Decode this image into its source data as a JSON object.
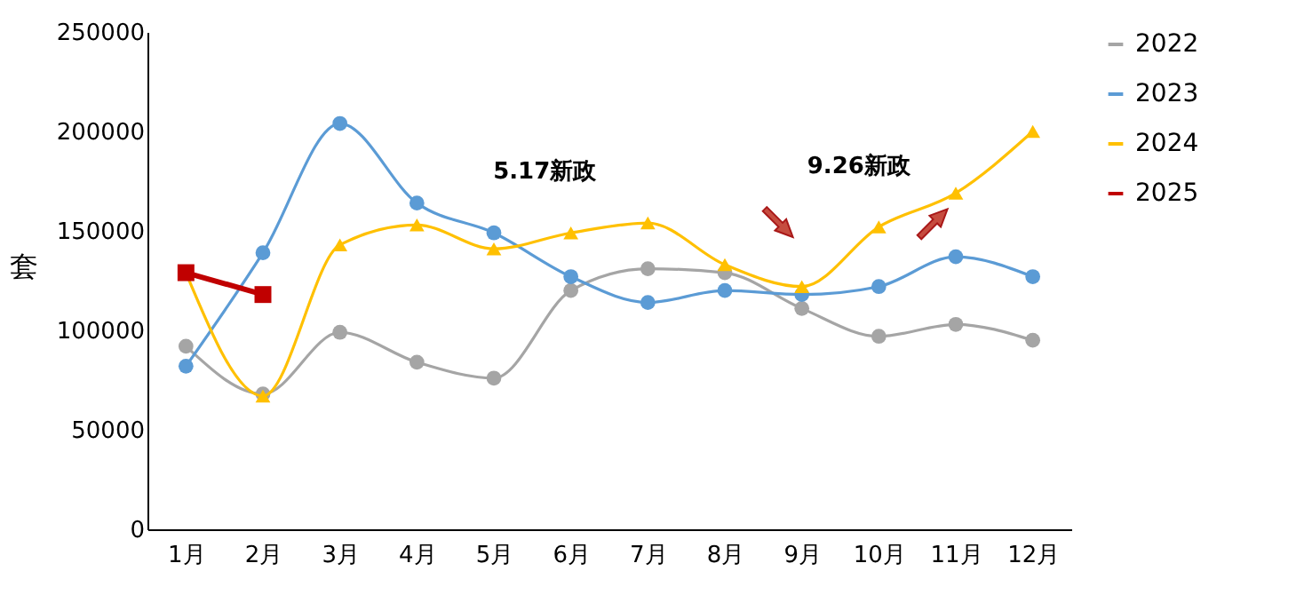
{
  "chart_data": {
    "type": "line",
    "categories": [
      "1月",
      "2月",
      "3月",
      "4月",
      "5月",
      "6月",
      "7月",
      "8月",
      "9月",
      "10月",
      "11月",
      "12月"
    ],
    "ylabel": "套",
    "ylim": [
      0,
      250000
    ],
    "yticks": [
      0,
      50000,
      100000,
      150000,
      200000,
      250000
    ],
    "grid": false,
    "legend": "right",
    "series": [
      {
        "name": "2022",
        "color": "#a5a5a5",
        "marker": "circle",
        "values": [
          92000,
          68000,
          99000,
          84000,
          76000,
          120000,
          131000,
          129000,
          111000,
          97000,
          103000,
          95000
        ]
      },
      {
        "name": "2023",
        "color": "#5b9bd5",
        "marker": "circle",
        "values": [
          82000,
          139000,
          204000,
          164000,
          149000,
          127000,
          114000,
          120000,
          118000,
          122000,
          137000,
          127000
        ]
      },
      {
        "name": "2024",
        "color": "#ffc000",
        "marker": "triangle",
        "values": [
          129000,
          67000,
          143000,
          153000,
          141000,
          149000,
          154000,
          133000,
          122000,
          152000,
          169000,
          200000
        ]
      },
      {
        "name": "2025",
        "color": "#c00000",
        "marker": "square",
        "values": [
          129000,
          118000,
          null,
          null,
          null,
          null,
          null,
          null,
          null,
          null,
          null,
          null
        ]
      }
    ],
    "annotations": [
      "5.17新政",
      "9.26新政"
    ]
  }
}
